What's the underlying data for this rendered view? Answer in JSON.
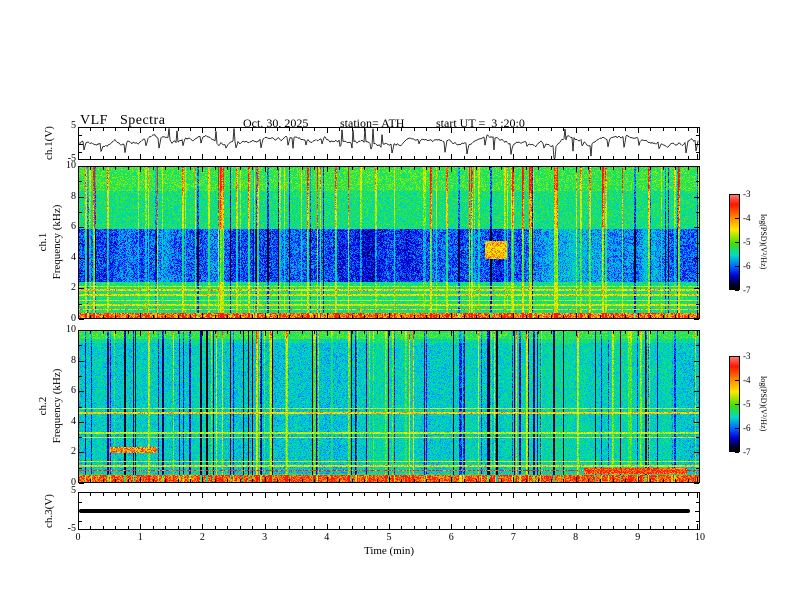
{
  "header": {
    "title": "VLF Spectra",
    "date": "Oct. 30, 2025",
    "station": "station= ATH",
    "start_ut": "start UT =  3 :20:0"
  },
  "labels": {
    "ch1v": "ch.1(V)",
    "ch1": "ch.1",
    "ch2": "ch.2",
    "ch3v": "ch.3(V)",
    "freq": "Frequency (kHz)",
    "cbar": "log(PSD)(V²/Hz)"
  },
  "axes": {
    "xlabel": "Time (min)",
    "xticks": [
      "0",
      "1",
      "2",
      "3",
      "4",
      "5",
      "6",
      "7",
      "8",
      "9",
      "10"
    ],
    "volt_ticks": [
      "5",
      "-5"
    ],
    "freq_ticks": [
      "10",
      "8",
      "6",
      "4",
      "2",
      "0"
    ],
    "cbar_ticks": [
      "-3",
      "-4",
      "-5",
      "-6",
      "-7"
    ]
  },
  "colorbar": {
    "label": "log(PSD)(V²/Hz)",
    "ticks": [
      -3,
      -4,
      -5,
      -6,
      -7
    ],
    "gradient_top_to_bottom": [
      "red",
      "orange",
      "yellow",
      "green",
      "cyan",
      "blue",
      "black"
    ]
  },
  "colors": {
    "background": "#ffffff",
    "axis": "#000000",
    "trace": "#000000"
  },
  "chart_data": [
    {
      "type": "line",
      "name": "ch.1(V) waveform",
      "ylabel": "ch.1(V)",
      "xlim": [
        0,
        10
      ],
      "ylim": [
        -5,
        5
      ],
      "yticks": [
        5,
        -5
      ],
      "description": "Noisy broadband VLF amplitude trace centered near 0 V with quasi-periodic sharp negative excursions of 2-4 V and sporadic impulsive spikes reaching about ±5 V across the full 10-minute record."
    },
    {
      "type": "heatmap",
      "name": "ch.1 spectrogram",
      "ylabel": "Frequency (kHz)",
      "xlim": [
        0,
        10
      ],
      "ylim": [
        0,
        10
      ],
      "zlabel": "log(PSD)(V²/Hz)",
      "zlim": [
        -7,
        -3
      ],
      "colormap": "black-blue-cyan-green-yellow-red",
      "features": [
        "diffuse mottled green/cyan background near -5",
        "dense vertical red/yellow sferic streaks, strongest above 8 kHz",
        "broad blue low-power patches between about 2.5 and 6 kHz",
        "narrow yellow horizontal hum lines below about 2.2 kHz",
        "intense red/orange band below about 0.3 kHz",
        "reddish patch near 6.7 min around 4.5 kHz"
      ]
    },
    {
      "type": "heatmap",
      "name": "ch.2 spectrogram",
      "ylabel": "Frequency (kHz)",
      "xlim": [
        0,
        10
      ],
      "ylim": [
        0,
        10
      ],
      "zlabel": "log(PSD)(V²/Hz)",
      "zlim": [
        -7,
        -3
      ],
      "colormap": "black-blue-cyan-green-yellow-red",
      "features": [
        "fairly uniform green background with vertical blue dropout streaks",
        "yellow horizontal lines near 1, 1.3, 3 and 4.5-5 kHz",
        "thin red line near 0.75 kHz, thickening right of about 8 min",
        "dark red patch near 2 kHz between about 0.5 and 1.2 min",
        "intense red band below about 0.5 kHz"
      ]
    },
    {
      "type": "line",
      "name": "ch.3(V) waveform",
      "ylabel": "ch.3(V)",
      "xlim": [
        0,
        10
      ],
      "ylim": [
        -5,
        5
      ],
      "yticks": [
        5,
        -5
      ],
      "values_constant": 0,
      "description": "Flat thick black line at 0 V (dead channel), ending near 9.85 min."
    }
  ]
}
